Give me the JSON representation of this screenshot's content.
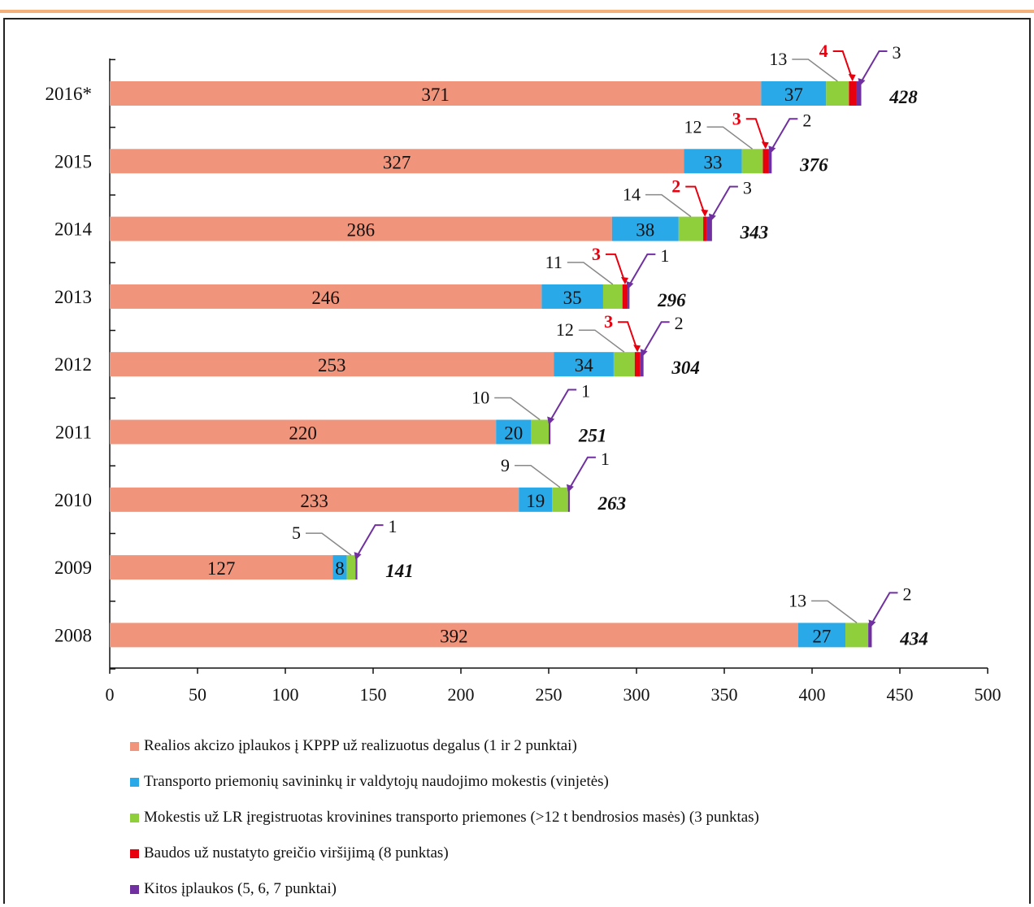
{
  "chart_data": {
    "type": "bar",
    "orientation": "horizontal",
    "stacked": true,
    "categories": [
      "2016*",
      "2015",
      "2014",
      "2013",
      "2012",
      "2011",
      "2010",
      "2009",
      "2008"
    ],
    "series": [
      {
        "name": "Realios akcizo įplaukos į KPPP už realizuotus degalus (1 ir 2 punktai)",
        "color": "#f0947b",
        "values": [
          371,
          327,
          286,
          246,
          253,
          220,
          233,
          127,
          392
        ]
      },
      {
        "name": "Transporto priemonių savininkų ir valdytojų naudojimo mokestis (vinjetės)",
        "color": "#2aa9e8",
        "values": [
          37,
          33,
          38,
          35,
          34,
          20,
          19,
          8,
          27
        ]
      },
      {
        "name": "Mokestis už LR įregistruotas krovinines transporto priemones (>12 t bendrosios masės) (3 punktas)",
        "color": "#8fcf3c",
        "values": [
          13,
          12,
          14,
          11,
          12,
          10,
          9,
          5,
          13
        ]
      },
      {
        "name": "Baudos už nustatyto greičio viršijimą (8 punktas)",
        "color": "#e8000f",
        "values": [
          4,
          3,
          2,
          3,
          3,
          0,
          0,
          0,
          0
        ]
      },
      {
        "name": "Kitos įplaukos (5, 6, 7 punktai)",
        "color": "#7030a0",
        "values": [
          3,
          2,
          3,
          1,
          2,
          1,
          1,
          1,
          2
        ]
      }
    ],
    "totals": [
      428,
      376,
      343,
      296,
      304,
      251,
      263,
      141,
      434
    ],
    "callouts": {
      "green": [
        "13",
        "12",
        "14",
        "11",
        "12",
        "10",
        "9",
        "5",
        "13"
      ],
      "red": [
        "4",
        "3",
        "2",
        "3",
        "3",
        "",
        "",
        "",
        ""
      ],
      "purple": [
        "3",
        "2",
        "3",
        "1",
        "2",
        "1",
        "1",
        "1",
        "2"
      ]
    },
    "xticks": [
      "0",
      "50",
      "100",
      "150",
      "200",
      "250",
      "300",
      "350",
      "400",
      "450",
      "500"
    ],
    "xlim": [
      0,
      500
    ],
    "legend_position": "bottom"
  }
}
